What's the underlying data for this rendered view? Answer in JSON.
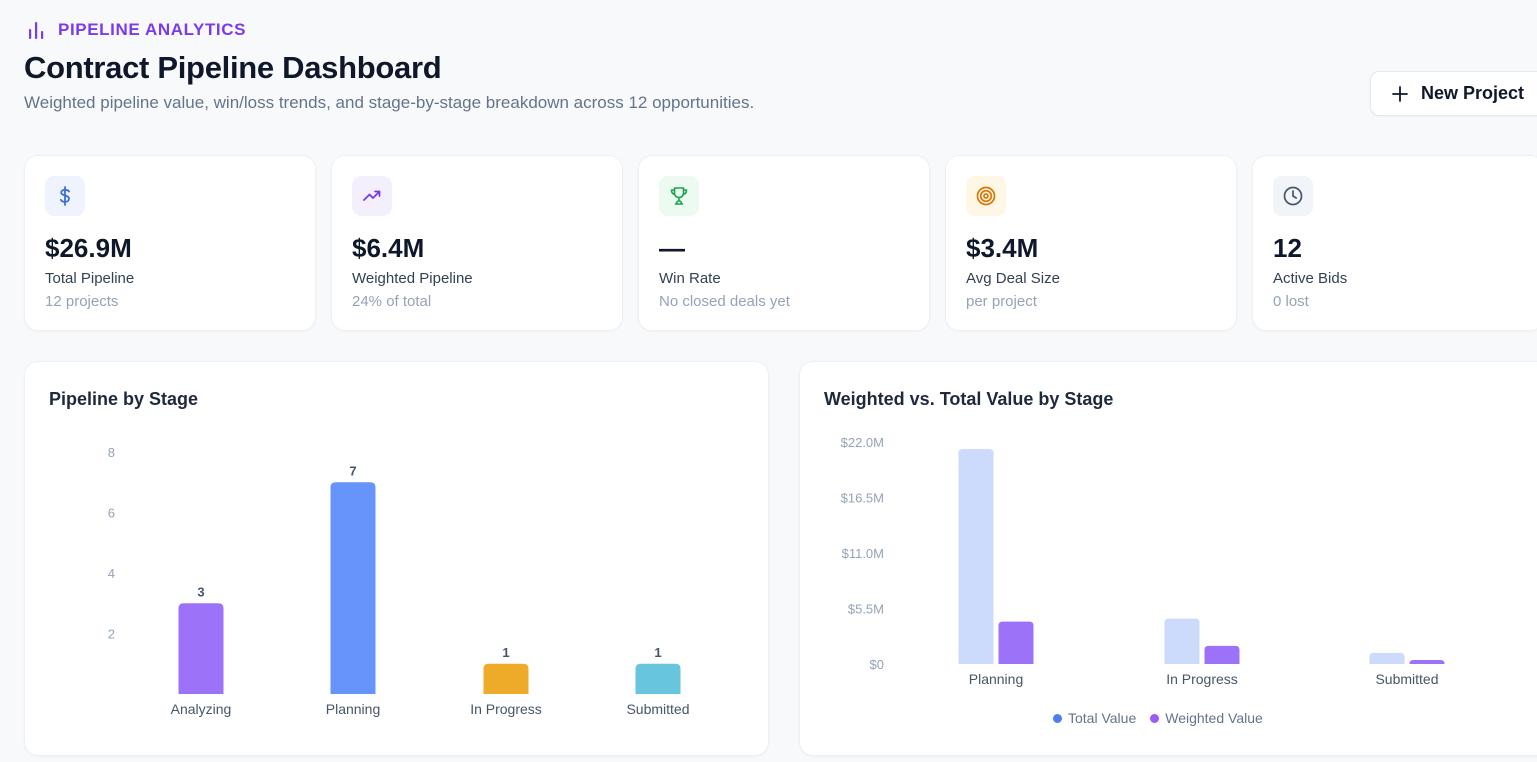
{
  "header": {
    "eyebrow": "PIPELINE ANALYTICS",
    "eyebrow_icon": "bar-chart-icon",
    "title": "Contract Pipeline Dashboard",
    "subtitle": "Weighted pipeline value, win/loss trends, and stage-by-stage breakdown across 12 opportunities.",
    "new_button_label": "New Project",
    "new_button_icon": "plus-icon"
  },
  "kpis": [
    {
      "icon": "dollar-icon",
      "value": "$26.9M",
      "label": "Total Pipeline",
      "sub": "12 projects",
      "color": "#3b6fd8",
      "bg": "#eef3fd"
    },
    {
      "icon": "trending-up-icon",
      "value": "$6.4M",
      "label": "Weighted Pipeline",
      "sub": "24% of total",
      "color": "#7c3aed",
      "bg": "#f3effd"
    },
    {
      "icon": "trophy-icon",
      "value": "—",
      "label": "Win Rate",
      "sub": "No closed deals yet",
      "color": "#16a34a",
      "bg": "#ecfaf1"
    },
    {
      "icon": "target-icon",
      "value": "$3.4M",
      "label": "Avg Deal Size",
      "sub": "per project",
      "color": "#d97706",
      "bg": "#fef7e6"
    },
    {
      "icon": "clock-icon",
      "value": "12",
      "label": "Active Bids",
      "sub": "0 lost",
      "color": "#475569",
      "bg": "#f1f5f9"
    }
  ],
  "panels": {
    "left_title": "Pipeline by Stage",
    "right_title": "Weighted vs. Total Value by Stage"
  },
  "chart_data": [
    {
      "type": "bar",
      "title": "Pipeline by Stage",
      "categories": [
        "Analyzing",
        "Planning",
        "In Progress",
        "Submitted"
      ],
      "values": [
        3,
        7,
        1,
        1
      ],
      "value_labels": [
        "3",
        "7",
        "1",
        "1"
      ],
      "colors": [
        "#9b72f8",
        "#6794fa",
        "#eeab2a",
        "#67c5dd"
      ],
      "ylim": [
        0,
        8
      ],
      "yticks": [
        2,
        4,
        6,
        8
      ],
      "ytick_labels": [
        "2",
        "4",
        "6",
        "8"
      ],
      "grid": false,
      "legend": "none"
    },
    {
      "type": "bar",
      "title": "Weighted vs. Total Value by Stage",
      "categories": [
        "Planning",
        "In Progress",
        "Submitted"
      ],
      "series": [
        {
          "name": "Total Value",
          "values": [
            21.3,
            4.5,
            1.1
          ],
          "color": "#ccdafb",
          "legend_color": "#4f7ef0"
        },
        {
          "name": "Weighted Value",
          "values": [
            4.2,
            1.8,
            0.4
          ],
          "color": "#9b72f8",
          "legend_color": "#9b5cf6"
        }
      ],
      "ylim": [
        0,
        22
      ],
      "yticks": [
        0,
        5.5,
        11,
        16.5,
        22
      ],
      "ytick_labels": [
        "$0",
        "$5.5M",
        "$11.0M",
        "$16.5M",
        "$22.0M"
      ],
      "grid": false,
      "legend": "bottom-center"
    }
  ]
}
